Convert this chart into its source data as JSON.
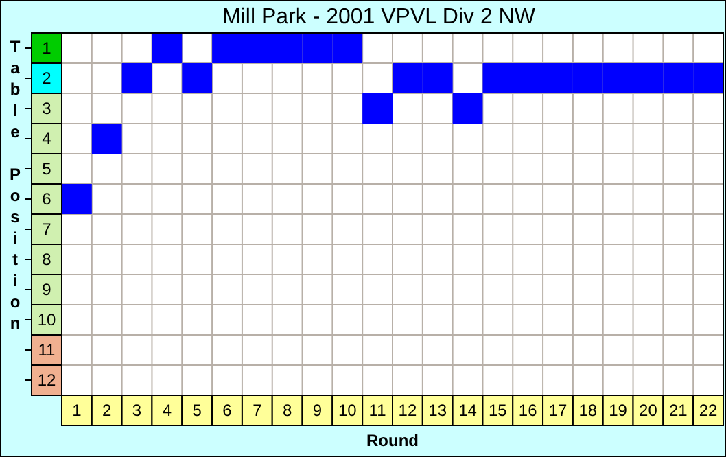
{
  "chart_data": {
    "type": "scatter",
    "title": "Mill Park - 2001 VPVL Div 2 NW",
    "xlabel": "Round",
    "ylabel": "Table Position",
    "categories": [
      "1",
      "2",
      "3",
      "4",
      "5",
      "6",
      "7",
      "8",
      "9",
      "10",
      "11",
      "12",
      "13",
      "14",
      "15",
      "16",
      "17",
      "18",
      "19",
      "20",
      "21",
      "22"
    ],
    "series": [
      {
        "color": "#0000ff",
        "values": [
          6,
          4,
          2,
          1,
          2,
          1,
          1,
          1,
          1,
          1,
          3,
          2,
          2,
          3,
          2,
          2,
          2,
          2,
          2,
          2,
          2,
          2
        ]
      }
    ],
    "ylim": [
      12.5,
      0.5
    ],
    "yticks": [
      1,
      2,
      3,
      4,
      5,
      6,
      7,
      8,
      9,
      10,
      11,
      12
    ],
    "grid": true,
    "marker": "square"
  }
}
